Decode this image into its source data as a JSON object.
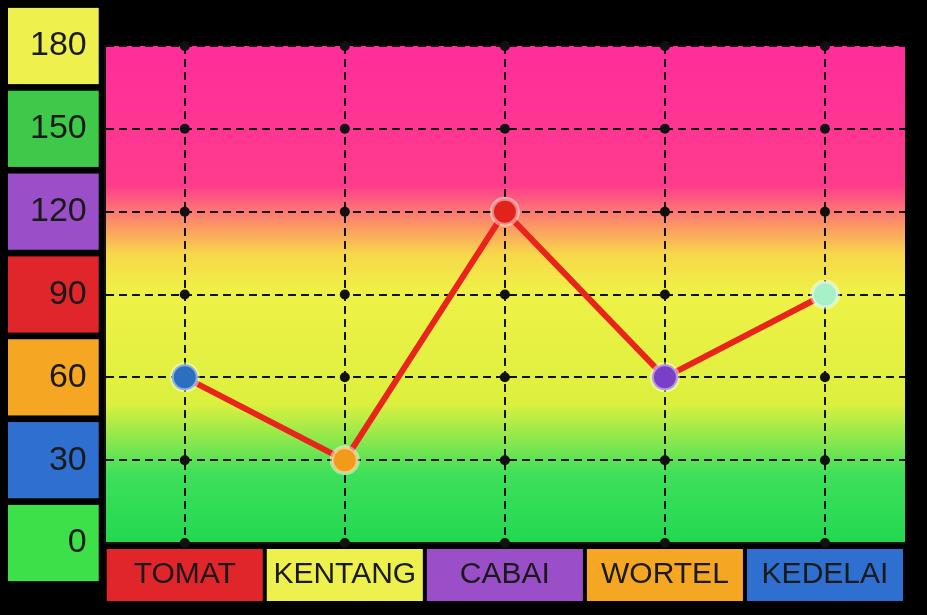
{
  "chart_data": {
    "type": "line",
    "categories": [
      "TOMAT",
      "KENTANG",
      "CABAI",
      "WORTEL",
      "KEDELAI"
    ],
    "values": [
      60,
      30,
      120,
      60,
      90
    ],
    "color": "#e8241c",
    "colors": [
      "#2a6fc0",
      "#f29b1a",
      "#e0241c",
      "#7a3fc8",
      "#a8f0c8"
    ],
    "marker": "circle",
    "line_style": "solid",
    "ylim": [
      0,
      180
    ],
    "yticks": [
      0,
      30,
      60,
      90,
      120,
      150,
      180
    ],
    "grid": true
  }
}
